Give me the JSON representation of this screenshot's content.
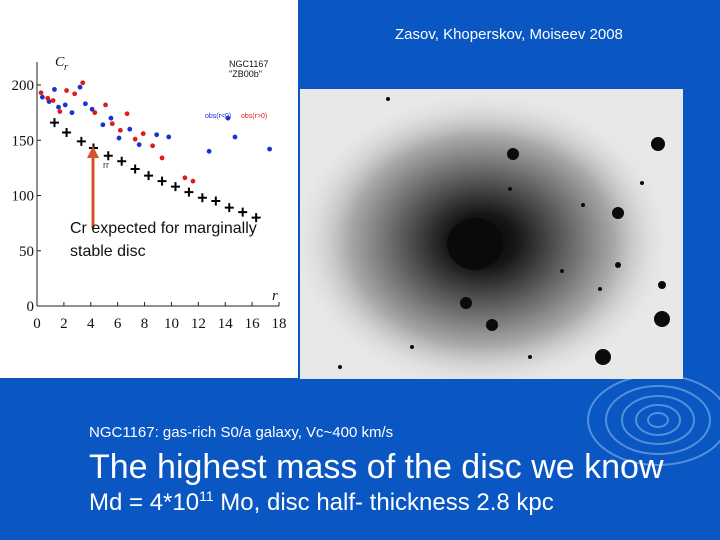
{
  "slide": {
    "citation": "Zasov, Khoperskov, Moiseev 2008",
    "caption": "NGC1167: gas-rich S0/a galaxy, Vc~400 km/s",
    "headline": "The highest mass of the disc we know",
    "mass_prefix": "Md = 4*10",
    "mass_exp": "11",
    "mass_suffix": " Mo, disc half- thickness 2.8 kpc",
    "colors": {
      "background": "#0a56c2",
      "swirl": "#5f9be0",
      "text": "#ffffff"
    }
  },
  "plot": {
    "annotation_line1": "Cr expected for marginally",
    "annotation_line2": "stable disc",
    "galaxy_name": "NGC1167",
    "galaxy_code": "\"ZB00b\"",
    "arrow_color": "#d4522c",
    "marker_label": "rr"
  },
  "image": {
    "name": "galaxy-image-NGC1167"
  },
  "chart_data": {
    "type": "scatter",
    "ylabel_symbol": "C",
    "ylabel_sub": "r",
    "xlabel": "r",
    "xlim": [
      0,
      18
    ],
    "ylim": [
      0,
      220
    ],
    "xticks": [
      0,
      2,
      4,
      6,
      8,
      10,
      12,
      14,
      16,
      18
    ],
    "yticks": [
      0,
      50,
      100,
      150,
      200
    ],
    "legend": [
      {
        "name": "obs(r<0)",
        "color": "#1a2fd6"
      },
      {
        "name": "obs(r>0)",
        "color": "#e01b1b"
      }
    ],
    "series": [
      {
        "name": "obs(r<0)",
        "marker": "dot",
        "color": "#1a2fd6",
        "x": [
          0.4,
          0.9,
          1.3,
          1.6,
          2.1,
          2.6,
          3.2,
          3.6,
          4.1,
          4.9,
          5.5,
          6.1,
          6.9,
          7.6,
          8.9,
          9.8,
          12.8,
          14.2,
          17.3
        ],
        "y": [
          189,
          185,
          196,
          180,
          182,
          175,
          198,
          183,
          178,
          164,
          170,
          152,
          160,
          146,
          155,
          153,
          140,
          170,
          142
        ]
      },
      {
        "name": "obs(r>0)",
        "marker": "dot",
        "color": "#e01b1b",
        "x": [
          0.3,
          0.8,
          1.2,
          1.7,
          2.2,
          2.8,
          3.4,
          4.3,
          5.1,
          5.6,
          6.2,
          6.7,
          7.3,
          7.9,
          8.6,
          9.3,
          11.0,
          11.6
        ],
        "y": [
          193,
          188,
          186,
          176,
          195,
          192,
          202,
          175,
          182,
          165,
          159,
          174,
          151,
          156,
          145,
          134,
          116,
          113
        ]
      },
      {
        "name": "Cr expected",
        "marker": "plus",
        "color": "#000000",
        "x": [
          1.3,
          2.2,
          3.3,
          4.2,
          5.3,
          6.3,
          7.3,
          8.3,
          9.3,
          10.3,
          11.3,
          12.3,
          13.3,
          14.3,
          15.3,
          16.3
        ],
        "y": [
          166,
          157,
          149,
          143,
          136,
          131,
          124,
          118,
          113,
          108,
          103,
          98,
          95,
          89,
          85,
          80
        ]
      }
    ]
  }
}
